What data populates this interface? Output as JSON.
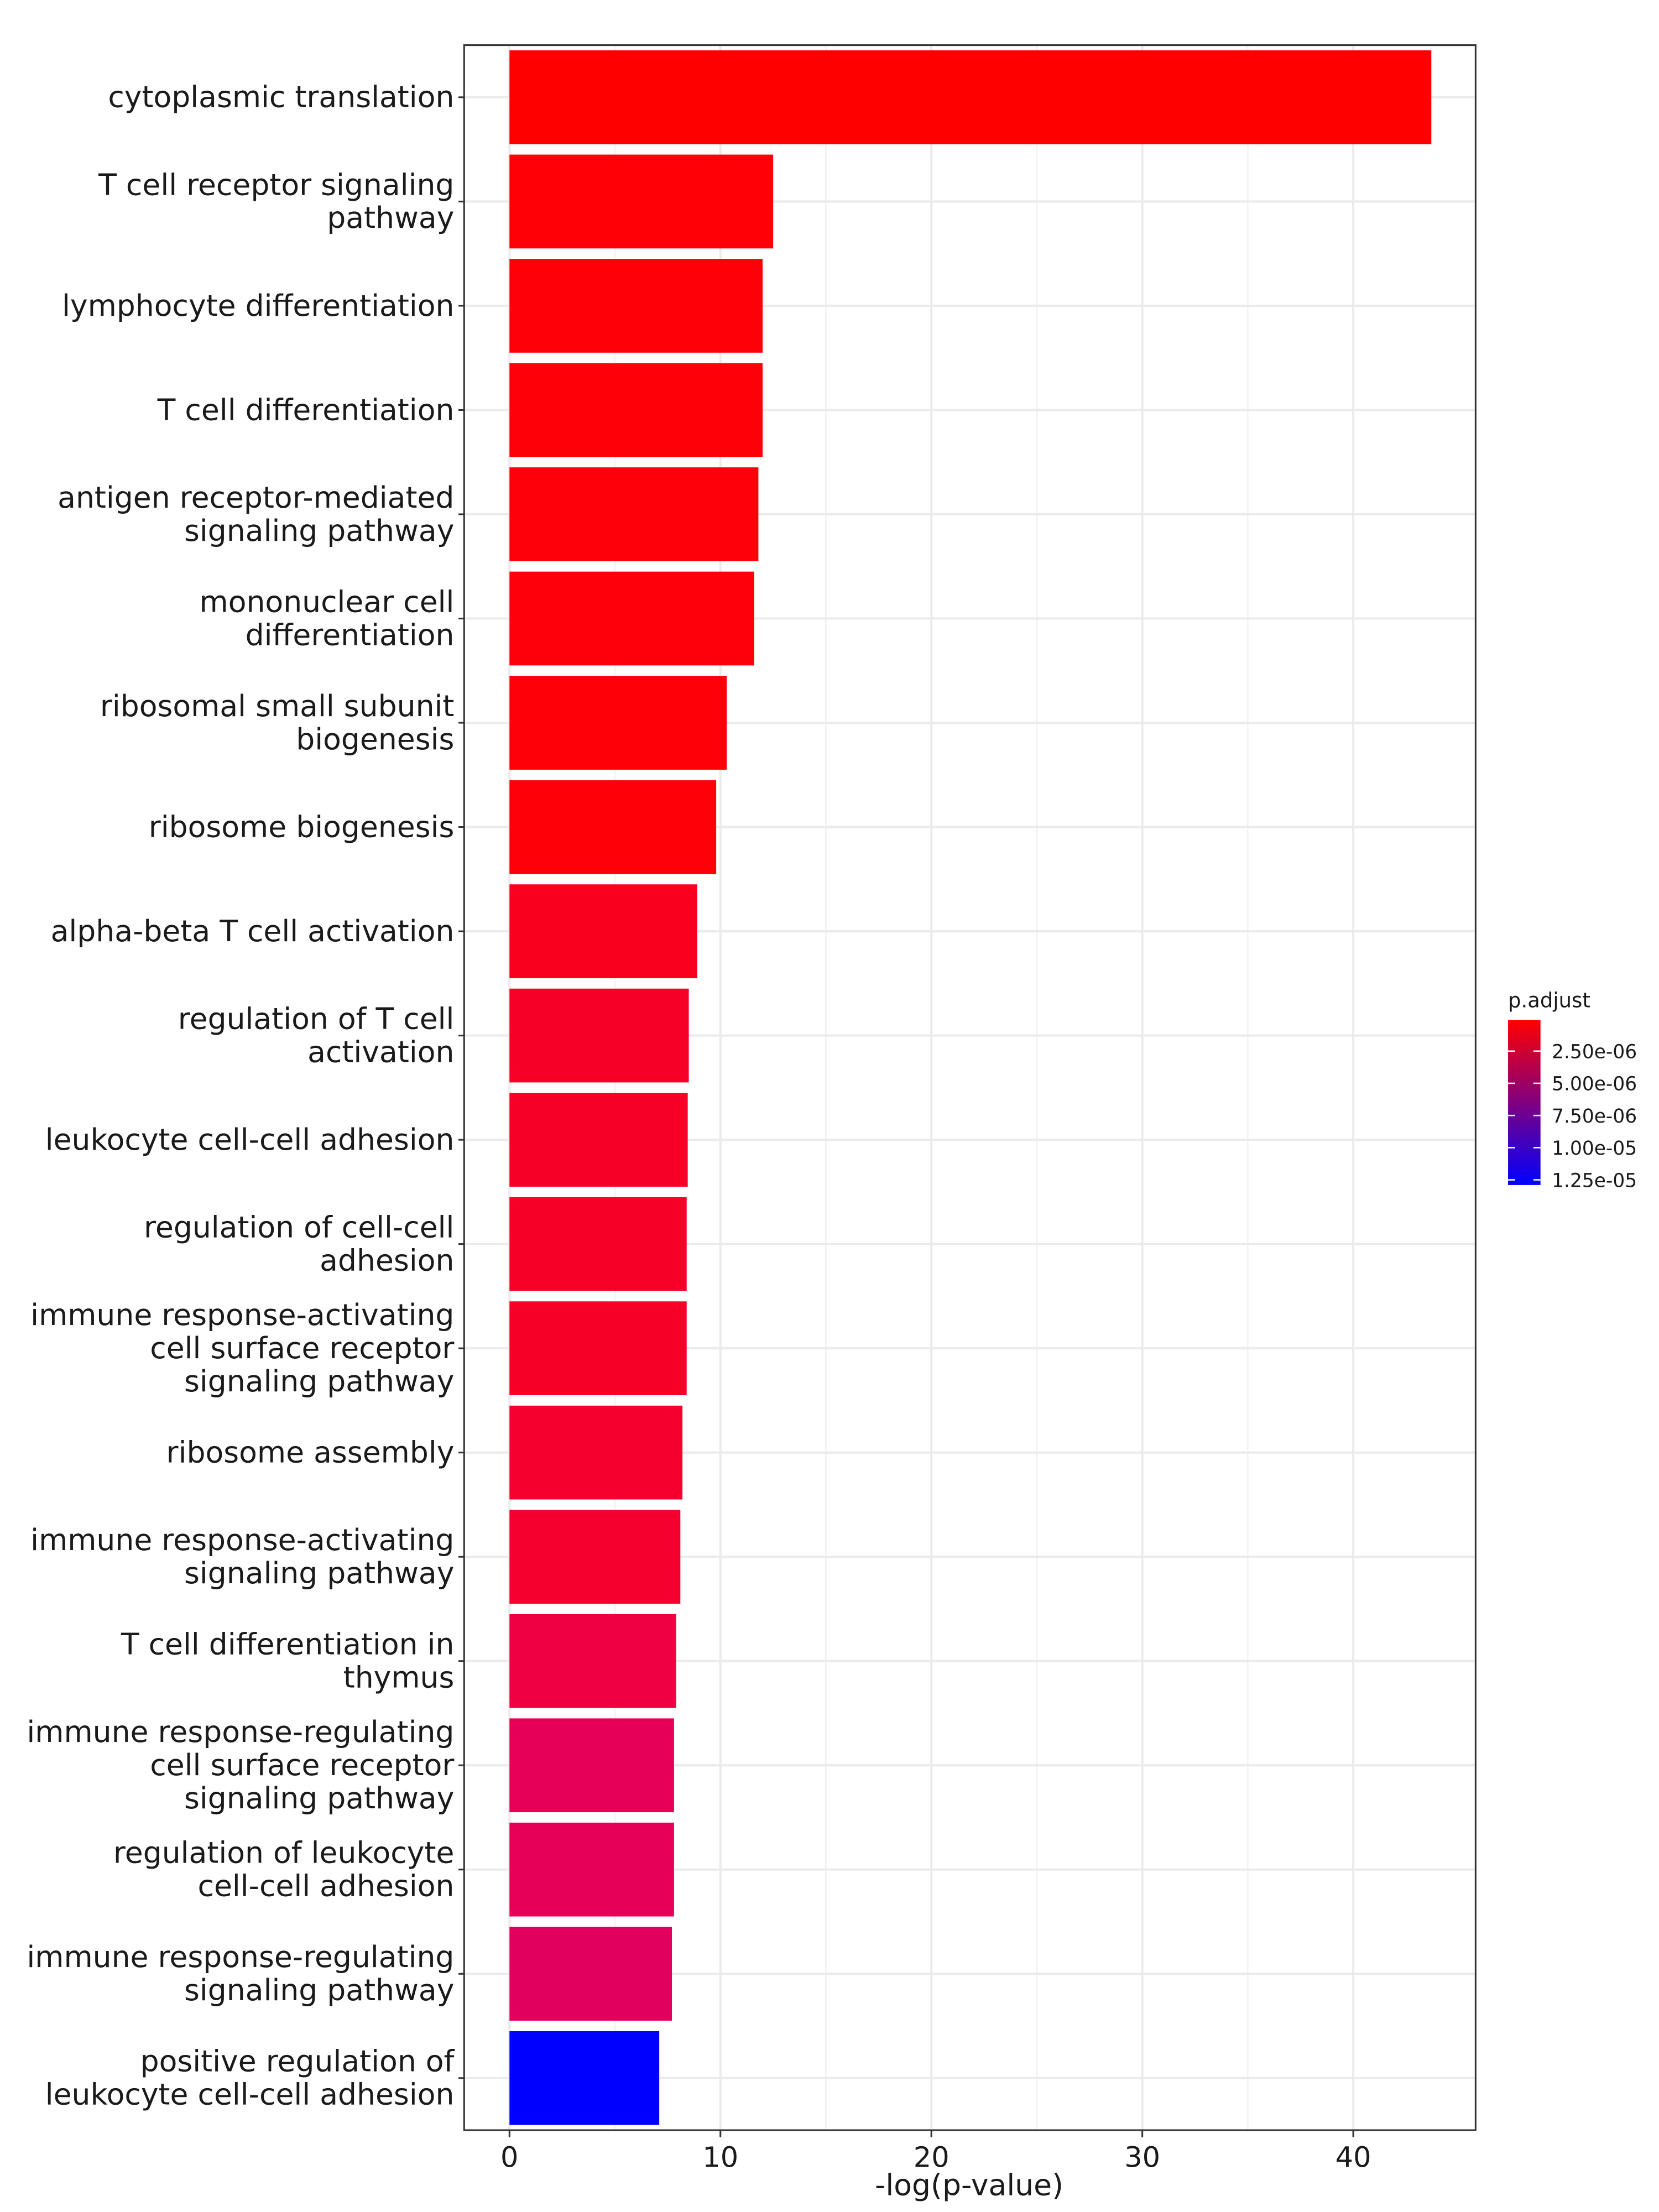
{
  "chart_data": {
    "type": "barh",
    "x_label": "-log(p-value)",
    "categories": [
      "cytoplasmic translation",
      "T cell receptor signaling\npathway",
      "lymphocyte differentiation",
      "T cell differentiation",
      "antigen receptor-mediated\nsignaling pathway",
      "mononuclear cell\ndifferentiation",
      "ribosomal small subunit\nbiogenesis",
      "ribosome biogenesis",
      "alpha-beta T cell activation",
      "regulation of T cell\nactivation",
      "leukocyte cell-cell adhesion",
      "regulation of cell-cell\nadhesion",
      "immune response-activating\ncell surface receptor\nsignaling pathway",
      "ribosome assembly",
      "immune response-activating\nsignaling pathway",
      "T cell differentiation in\nthymus",
      "immune response-regulating\ncell surface receptor\nsignaling pathway",
      "regulation of leukocyte\ncell-cell adhesion",
      "immune response-regulating\nsignaling pathway",
      "positive regulation of\nleukocyte cell-cell adhesion"
    ],
    "values": [
      43.7,
      12.5,
      12.0,
      12.0,
      11.8,
      11.6,
      10.3,
      9.8,
      8.9,
      8.5,
      8.45,
      8.4,
      8.4,
      8.2,
      8.1,
      7.9,
      7.8,
      7.8,
      7.7,
      7.1
    ],
    "colors": [
      "#ff0000",
      "#ff0004",
      "#fe0007",
      "#fe0007",
      "#fe000a",
      "#fd000c",
      "#fd0008",
      "#fe0008",
      "#f8001e",
      "#f60026",
      "#f60026",
      "#f60026",
      "#f60026",
      "#f5002e",
      "#f5002e",
      "#ee0042",
      "#e60056",
      "#e60056",
      "#e2005e",
      "#0000ff"
    ],
    "xlim": [
      -2.15,
      45.8
    ],
    "xticks": [
      0,
      10,
      20,
      30,
      40
    ],
    "grid": true,
    "legend": {
      "title": "p.adjust",
      "colors": [
        "#ff0000",
        "#0000ff"
      ],
      "lim": [
        8e-08,
        1.29e-05
      ],
      "ticks": [
        {
          "value": 2.5e-06,
          "label": "2.50e-06"
        },
        {
          "value": 5e-06,
          "label": "5.00e-06"
        },
        {
          "value": 7.5e-06,
          "label": "7.50e-06"
        },
        {
          "value": 1e-05,
          "label": "1.00e-05"
        },
        {
          "value": 1.25e-05,
          "label": "1.25e-05"
        }
      ]
    }
  }
}
